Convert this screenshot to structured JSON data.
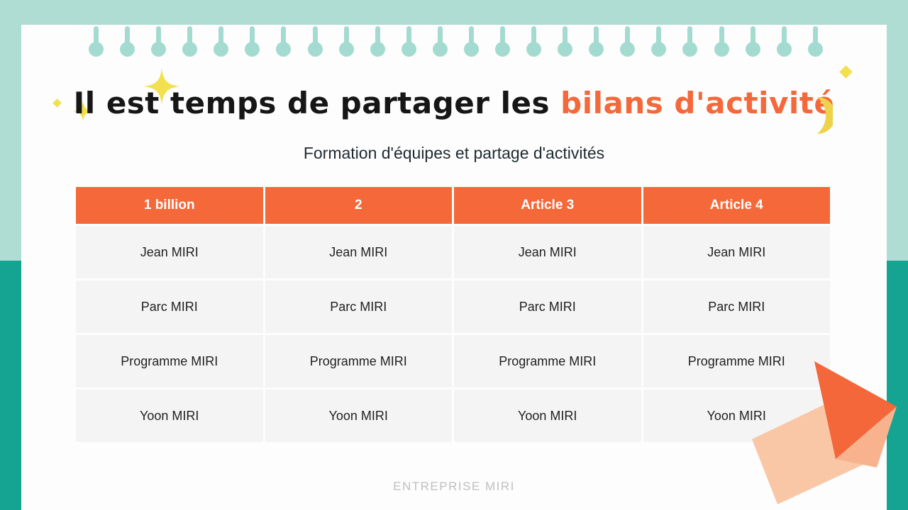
{
  "slide": {
    "title_black": "Il est temps de partager les",
    "title_orange": "bilans d'activité",
    "subtitle": "Formation d'équipes et partage d'activités",
    "footer": "ENTREPRISE MIRI"
  },
  "table": {
    "headers": [
      "1 billion",
      "2",
      "Article 3",
      "Article 4"
    ],
    "rows": [
      [
        "Jean MIRI",
        "Jean MIRI",
        "Jean MIRI",
        "Jean MIRI"
      ],
      [
        "Parc MIRI",
        "Parc MIRI",
        "Parc MIRI",
        "Parc MIRI"
      ],
      [
        "Programme MIRI",
        "Programme MIRI",
        "Programme MIRI",
        "Programme MIRI"
      ],
      [
        "Yoon MIRI",
        "Yoon MIRI",
        "Yoon MIRI",
        "Yoon MIRI"
      ]
    ]
  },
  "colors": {
    "mint_band": "#afddd4",
    "teal_band": "#15a492",
    "accent_orange": "#f4693c",
    "table_header": "#f5683a",
    "cell_gray": "#f4f4f4",
    "title_black": "#161616",
    "footer_gray": "#c0bfbf",
    "sparkle_yellow": "#f3e04e",
    "arrow_peach": "#f9c7a6"
  },
  "decor": {
    "binding_dot_count": 24
  }
}
